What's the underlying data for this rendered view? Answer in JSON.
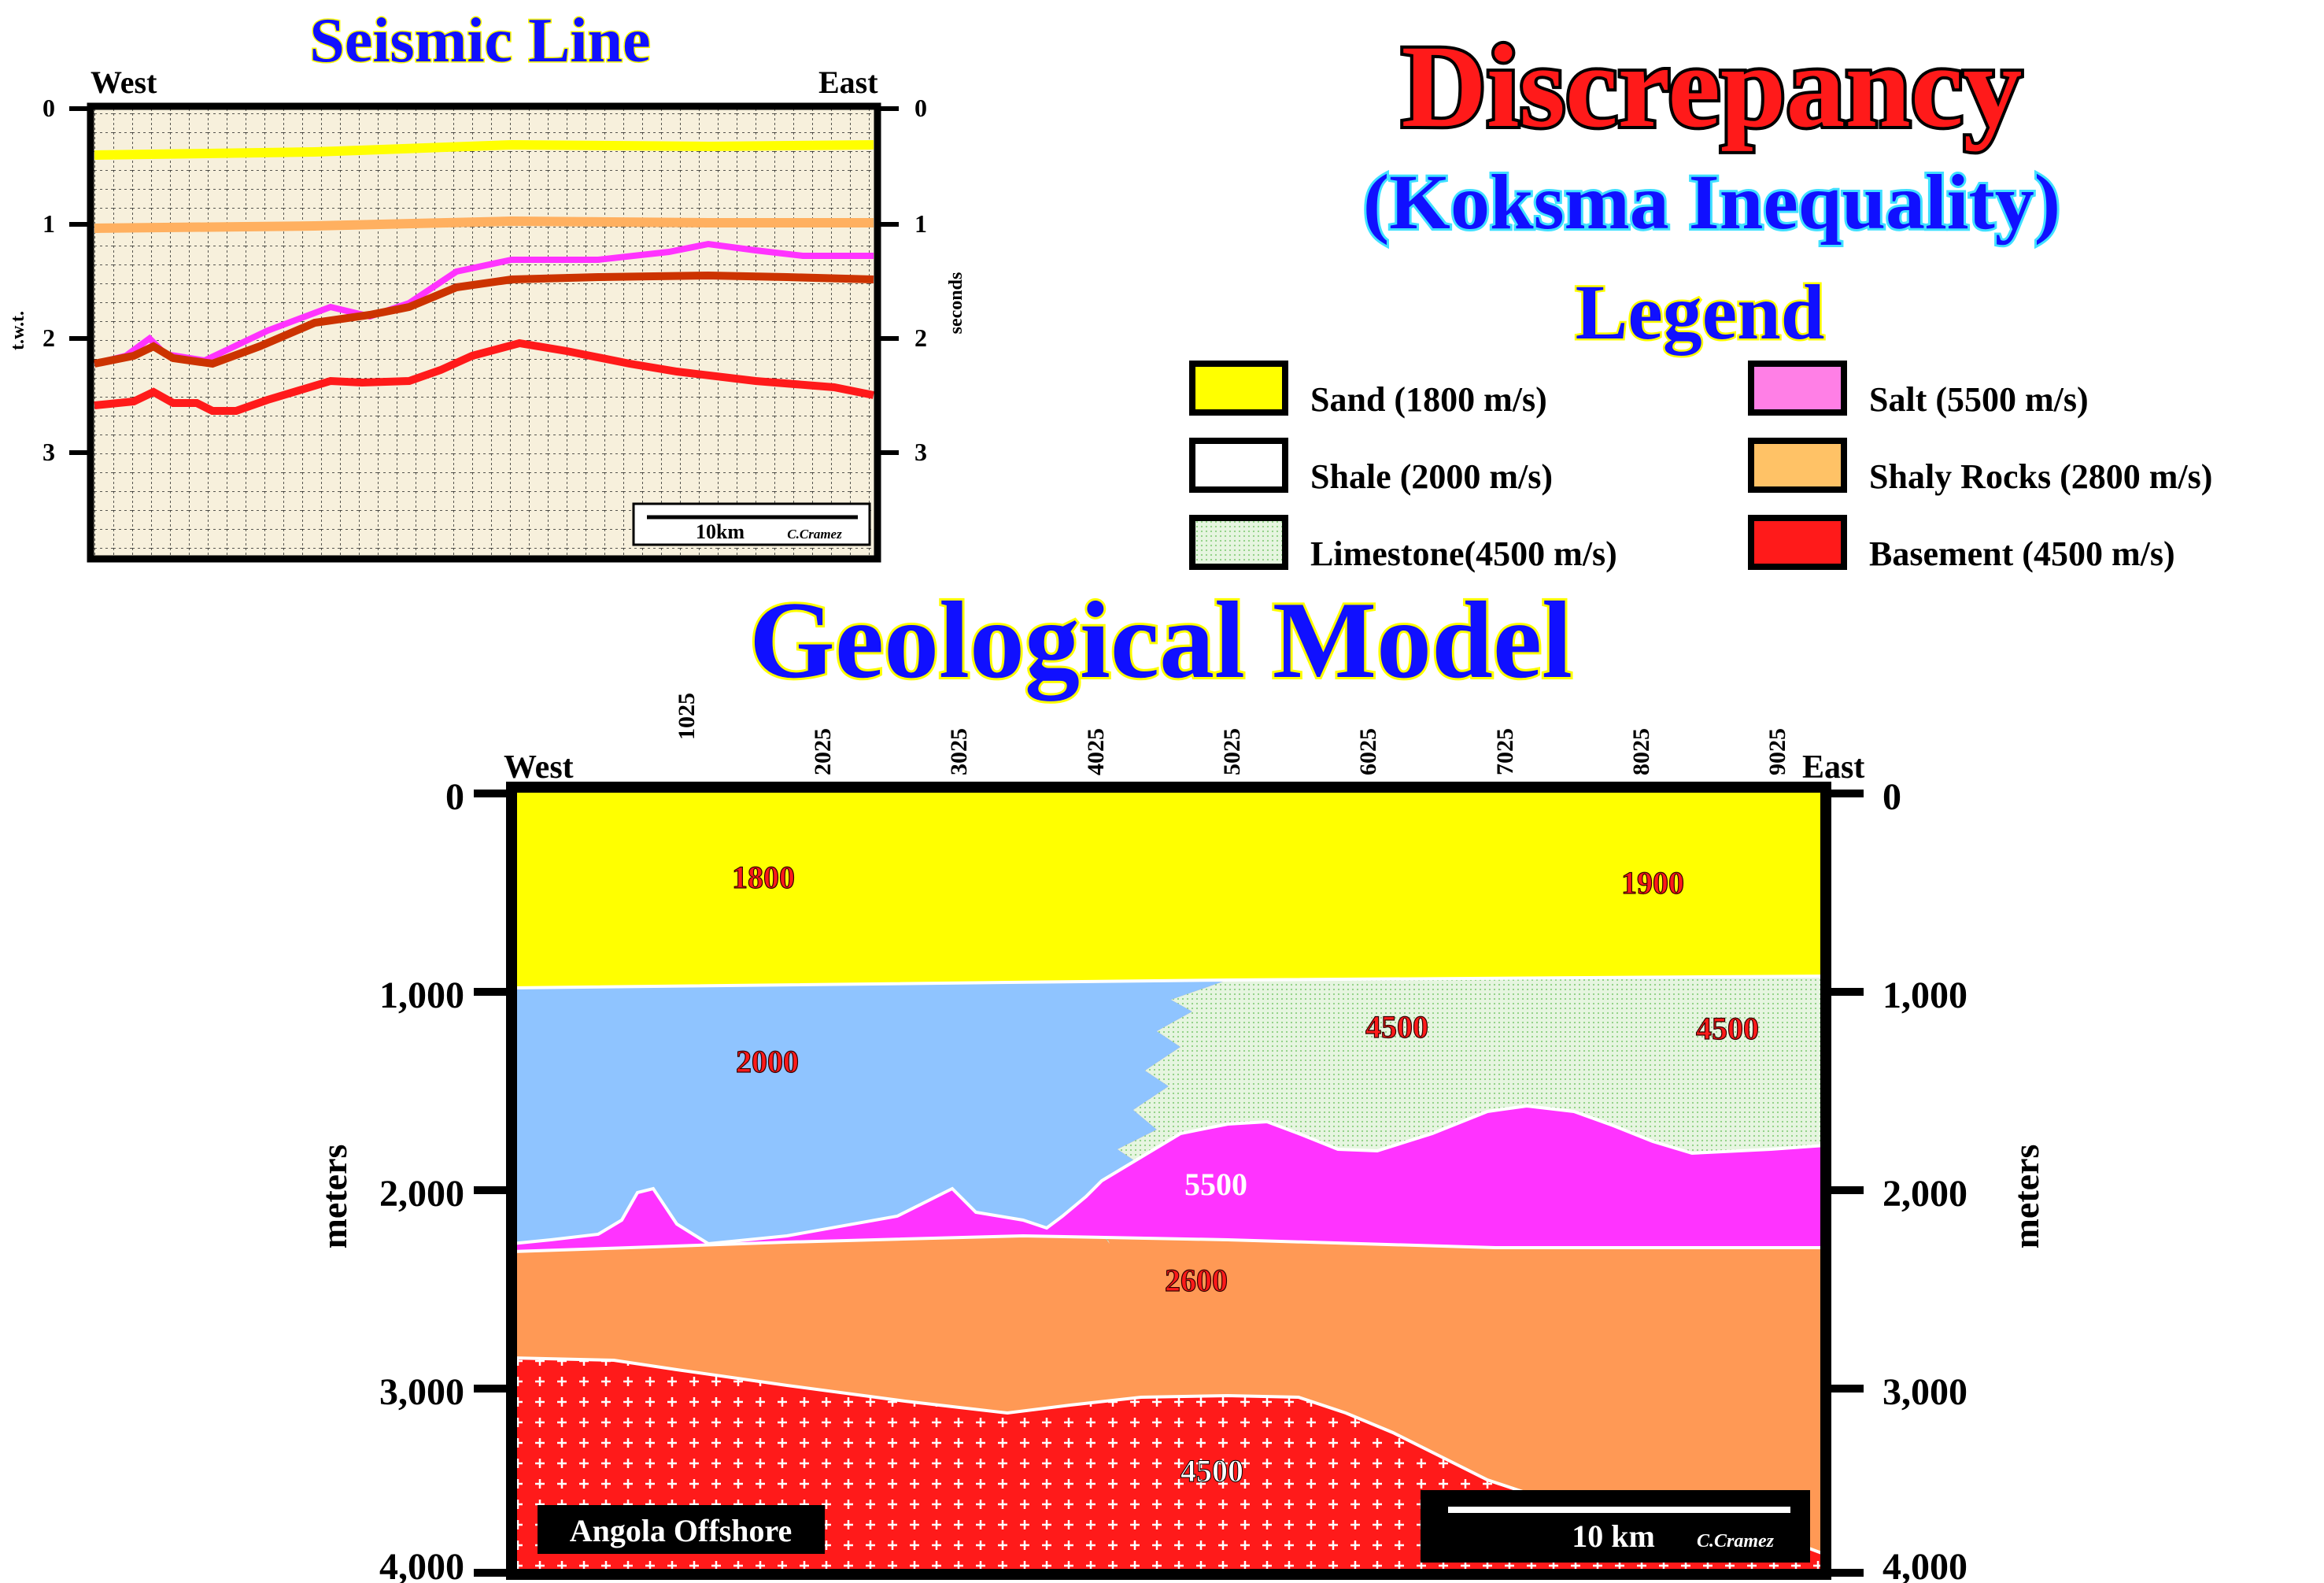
{
  "colors": {
    "sand": "#ffff00",
    "shale": "#8fc4ff",
    "limestone": "#d7f0d0",
    "salt": "#ff33ff",
    "shaly_rocks": "#ff9955",
    "basement": "#ff1a1a",
    "title_red": "#ff1a1a",
    "title_blue": "#1010ff",
    "seismic_bg": "#f7f0dc"
  },
  "seismic": {
    "title": "Seismic Line",
    "west": "West",
    "east": "East",
    "left_ticks": [
      "0",
      "1",
      "2",
      "3"
    ],
    "right_ticks": [
      "0",
      "1",
      "2",
      "3"
    ],
    "left_axis_label": "t.w.t.",
    "right_axis_label": "seconds",
    "scale_label": "10km",
    "credit": "C.Cramez"
  },
  "header": {
    "title": "Discrepancy",
    "subtitle": "(Koksma Inequality)",
    "legend_title": "Legend"
  },
  "legend": [
    {
      "label": "Sand (1800 m/s)",
      "color": "#ffff00",
      "icon": "solid"
    },
    {
      "label": "Shale (2000 m/s)",
      "color": "#ffffff",
      "icon": "solid"
    },
    {
      "label": "Limestone(4500 m/s)",
      "color": "#d7f0d0",
      "icon": "dotted"
    },
    {
      "label": "Salt (5500 m/s)",
      "color": "#ff7fe6",
      "icon": "solid"
    },
    {
      "label": "Shaly Rocks (2800 m/s)",
      "color": "#ffc266",
      "icon": "solid"
    },
    {
      "label": "Basement (4500 m/s)",
      "color": "#ff1a1a",
      "icon": "solid"
    }
  ],
  "model": {
    "title": "Geological Model",
    "west": "West",
    "east": "East",
    "top_ticks": [
      "1025",
      "2025",
      "3025",
      "4025",
      "5025",
      "6025",
      "7025",
      "8025",
      "9025"
    ],
    "depth_ticks": [
      "0",
      "1,000",
      "2,000",
      "3,000",
      "4,000"
    ],
    "axis_label": "meters",
    "velocities": {
      "sand_west": "1800",
      "sand_east": "1900",
      "shale": "2000",
      "limestone_1": "4500",
      "limestone_2": "4500",
      "salt": "5500",
      "shaly_rocks": "2600",
      "basement": "4500"
    },
    "location": "Angola Offshore",
    "scale_label": "10 km",
    "credit": "C.Cramez"
  }
}
